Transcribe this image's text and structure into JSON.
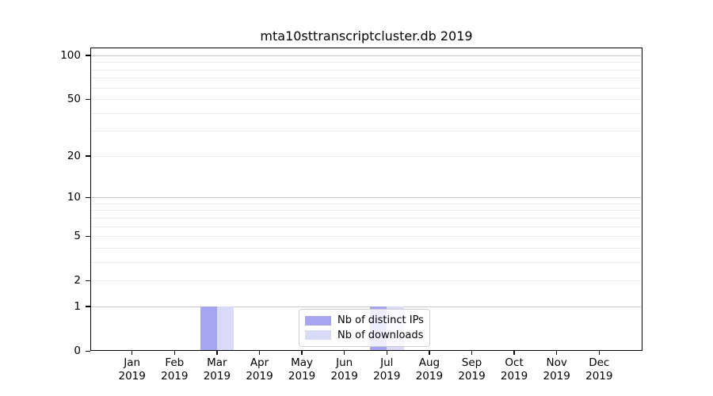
{
  "chart_data": {
    "type": "bar",
    "title": "mta10sttranscriptcluster.db 2019",
    "categories": [
      "Jan 2019",
      "Feb 2019",
      "Mar 2019",
      "Apr 2019",
      "May 2019",
      "Jun 2019",
      "Jul 2019",
      "Aug 2019",
      "Sep 2019",
      "Oct 2019",
      "Nov 2019",
      "Dec 2019"
    ],
    "series": [
      {
        "name": "Nb of distinct IPs",
        "color": "#a5a5f2",
        "values": [
          0,
          0,
          1,
          0,
          0,
          0,
          1,
          0,
          0,
          0,
          0,
          0
        ]
      },
      {
        "name": "Nb of downloads",
        "color": "#d9d9f8",
        "values": [
          0,
          0,
          1,
          0,
          0,
          0,
          1,
          0,
          0,
          0,
          0,
          0
        ]
      }
    ],
    "xlabel": "",
    "ylabel": "",
    "yscale": "log1p",
    "ylim": [
      0,
      113
    ],
    "yticks": [
      0,
      1,
      2,
      5,
      10,
      20,
      50,
      100
    ],
    "grid": {
      "orientation": "horizontal",
      "major_values": [
        1,
        10,
        100
      ],
      "minor_values": [
        2,
        3,
        4,
        5,
        6,
        7,
        8,
        9,
        20,
        30,
        40,
        50,
        60,
        70,
        80,
        90
      ],
      "major_color": "#c6c6c6",
      "minor_color": "#ececec"
    },
    "legend_position": "bottom-center-inside"
  },
  "colors": {
    "axis": "#000000",
    "background": "#ffffff",
    "text": "#000000"
  }
}
